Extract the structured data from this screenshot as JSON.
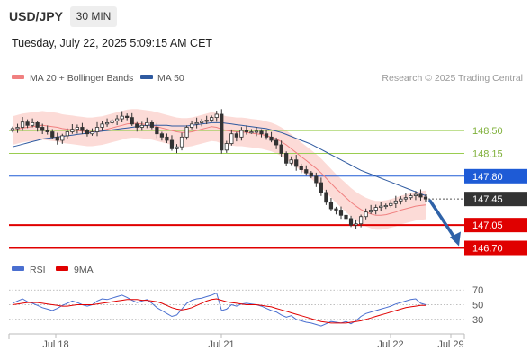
{
  "header": {
    "symbol": "USD/JPY",
    "timeframe": "30 MIN",
    "datetime": "Tuesday, July 22, 2025 5:09:15 AM CET"
  },
  "legend_main": [
    {
      "label": "MA 20 + Bollinger Bands",
      "color": "#f08080"
    },
    {
      "label": "MA 50",
      "color": "#2f5aa0"
    }
  ],
  "legend_rsi": [
    {
      "label": "RSI",
      "color": "#4a6fd0"
    },
    {
      "label": "9MA",
      "color": "#e00000"
    }
  ],
  "credit": "Research © 2025 Trading Central",
  "colors": {
    "green_level": "#9acd50",
    "blue_level": "#1e5bd6",
    "red_level": "#e00000",
    "price_box": "#333333",
    "candle": "#333333",
    "band_fill": "#fcd5d0",
    "ma20": "#f08080",
    "ma50": "#2f5aa0",
    "arrow": "#2f62a8"
  },
  "chart_data": {
    "type": "candlestick",
    "x_labels": [
      "Jul 18",
      "Jul 21",
      "Jul 22",
      "Jul 29"
    ],
    "price_levels": [
      {
        "value": 148.5,
        "label": "148.50",
        "style": "resistance-light"
      },
      {
        "value": 148.15,
        "label": "148.15",
        "style": "resistance-light"
      },
      {
        "value": 147.8,
        "label": "147.80",
        "style": "pivot"
      },
      {
        "value": 147.45,
        "label": "147.45",
        "style": "last-price"
      },
      {
        "value": 147.05,
        "label": "147.05",
        "style": "support"
      },
      {
        "value": 146.7,
        "label": "146.70",
        "style": "support"
      }
    ],
    "ylim": [
      146.5,
      149.15
    ],
    "close_series": [
      148.53,
      148.55,
      148.63,
      148.58,
      148.62,
      148.55,
      148.5,
      148.48,
      148.4,
      148.35,
      148.42,
      148.48,
      148.52,
      148.55,
      148.5,
      148.45,
      148.48,
      148.55,
      148.6,
      148.62,
      148.65,
      148.68,
      148.72,
      148.7,
      148.6,
      148.55,
      148.58,
      148.62,
      148.55,
      148.45,
      148.4,
      148.35,
      148.22,
      148.25,
      148.4,
      148.55,
      148.6,
      148.62,
      148.64,
      148.66,
      148.7,
      148.75,
      148.2,
      148.3,
      148.45,
      148.4,
      148.5,
      148.48,
      148.48,
      148.49,
      148.45,
      148.4,
      148.35,
      148.28,
      148.15,
      148.0,
      148.05,
      147.95,
      147.9,
      147.85,
      147.8,
      147.7,
      147.55,
      147.4,
      147.3,
      147.28,
      147.2,
      147.15,
      147.05,
      147.07,
      147.18,
      147.25,
      147.28,
      147.32,
      147.34,
      147.35,
      147.38,
      147.42,
      147.45,
      147.47,
      147.5,
      147.52,
      147.48,
      147.45
    ],
    "ma20_series": [
      148.5,
      148.52,
      148.54,
      148.55,
      148.56,
      148.57,
      148.58,
      148.57,
      148.56,
      148.55,
      148.53,
      148.52,
      148.51,
      148.5,
      148.49,
      148.48,
      148.48,
      148.49,
      148.5,
      148.52,
      148.54,
      148.56,
      148.58,
      148.6,
      148.61,
      148.61,
      148.6,
      148.59,
      148.58,
      148.56,
      148.54,
      148.52,
      148.5,
      148.48,
      148.47,
      148.47,
      148.48,
      148.5,
      148.52,
      148.54,
      148.56,
      148.55,
      148.52,
      148.5,
      148.49,
      148.48,
      148.48,
      148.47,
      148.46,
      148.45,
      148.44,
      148.42,
      148.4,
      148.37,
      148.33,
      148.28,
      148.22,
      148.16,
      148.1,
      148.04,
      147.98,
      147.92,
      147.85,
      147.77,
      147.69,
      147.61,
      147.54,
      147.47,
      147.4,
      147.34,
      147.29,
      147.25,
      147.22,
      147.2,
      147.2,
      147.21,
      147.23,
      147.25,
      147.28,
      147.3,
      147.32,
      147.34,
      147.35,
      147.36
    ],
    "ma50_series": [
      148.25,
      148.27,
      148.29,
      148.31,
      148.33,
      148.35,
      148.37,
      148.38,
      148.39,
      148.4,
      148.41,
      148.42,
      148.43,
      148.44,
      148.45,
      148.46,
      148.47,
      148.48,
      148.49,
      148.5,
      148.51,
      148.52,
      148.53,
      148.54,
      148.55,
      148.56,
      148.57,
      148.58,
      148.58,
      148.58,
      148.58,
      148.58,
      148.57,
      148.57,
      148.57,
      148.57,
      148.58,
      148.59,
      148.6,
      148.61,
      148.62,
      148.62,
      148.62,
      148.61,
      148.6,
      148.59,
      148.58,
      148.57,
      148.56,
      148.55,
      148.54,
      148.53,
      148.51,
      148.49,
      148.47,
      148.44,
      148.41,
      148.38,
      148.35,
      148.32,
      148.29,
      148.25,
      148.21,
      148.17,
      148.13,
      148.09,
      148.05,
      148.01,
      147.97,
      147.93,
      147.89,
      147.86,
      147.83,
      147.8,
      147.77,
      147.74,
      147.71,
      147.68,
      147.65,
      147.62,
      147.59,
      147.56,
      147.53,
      147.5
    ],
    "band_half_width": 0.22,
    "forecast": {
      "from": 147.45,
      "to": 146.7,
      "direction": "down"
    },
    "rsi": {
      "tick_labels": [
        "70",
        "50",
        "30"
      ],
      "levels": [
        70,
        50,
        30
      ],
      "ylim": [
        15,
        85
      ],
      "series": [
        {
          "name": "RSI",
          "values": [
            52,
            55,
            58,
            54,
            52,
            49,
            46,
            44,
            42,
            45,
            49,
            52,
            55,
            53,
            50,
            48,
            50,
            55,
            58,
            57,
            59,
            61,
            63,
            60,
            56,
            53,
            55,
            57,
            52,
            46,
            42,
            38,
            34,
            36,
            44,
            52,
            56,
            58,
            59,
            61,
            63,
            66,
            42,
            44,
            50,
            48,
            51,
            52,
            51,
            50,
            48,
            45,
            42,
            40,
            36,
            33,
            35,
            30,
            28,
            26,
            25,
            23,
            21,
            24,
            27,
            26,
            25,
            27,
            24,
            28,
            34,
            38,
            40,
            42,
            44,
            46,
            48,
            51,
            53,
            55,
            57,
            58,
            52,
            50
          ]
        },
        {
          "name": "9MA",
          "values": [
            50,
            51,
            52,
            53,
            53,
            53,
            52,
            51,
            50,
            49,
            48,
            48,
            49,
            50,
            50,
            50,
            50,
            51,
            52,
            53,
            54,
            55,
            56,
            57,
            57,
            57,
            56,
            56,
            55,
            54,
            52,
            49,
            46,
            44,
            43,
            44,
            46,
            49,
            52,
            55,
            57,
            58,
            56,
            54,
            53,
            52,
            51,
            50,
            50,
            50,
            49,
            48,
            47,
            45,
            43,
            41,
            39,
            37,
            35,
            33,
            31,
            29,
            27,
            26,
            25,
            25,
            25,
            25,
            26,
            27,
            28,
            30,
            32,
            34,
            36,
            38,
            40,
            42,
            44,
            46,
            47,
            48,
            49,
            49
          ]
        }
      ]
    }
  }
}
